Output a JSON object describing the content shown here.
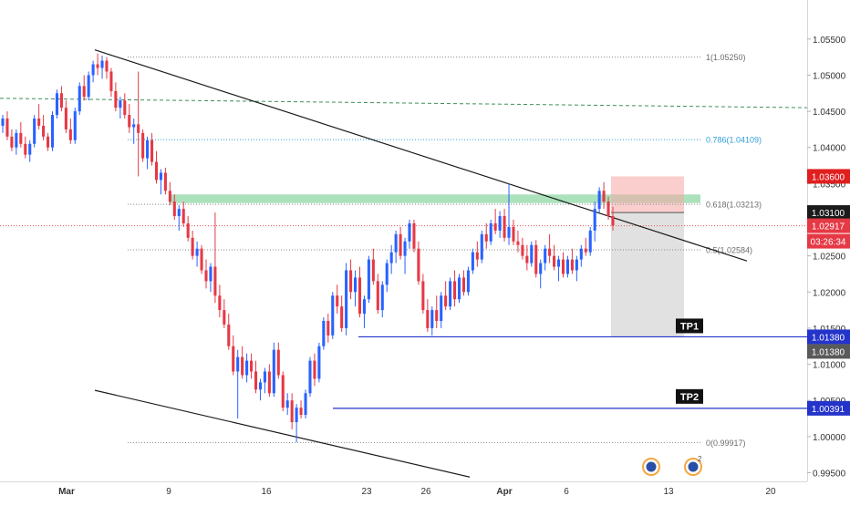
{
  "chart_data": {
    "type": "candlestick",
    "title": "",
    "xlabel": "",
    "ylabel": "",
    "ylim": [
      0.9938,
      1.0604
    ],
    "x_ticks": [
      "Mar",
      "9",
      "16",
      "23",
      "26",
      "Apr",
      "6",
      "13",
      "20"
    ],
    "y_ticks": [
      "1.05500",
      "1.05000",
      "1.04500",
      "1.04000",
      "1.03500",
      "1.03000",
      "1.02500",
      "1.02000",
      "1.01500",
      "1.01000",
      "1.00500",
      "1.00000",
      "0.99500"
    ],
    "price_labels": {
      "stop_loss": "1.03600",
      "entry": "1.03100",
      "current": "1.02917",
      "countdown": "03:26:34",
      "tp1": "1.01380",
      "tp1_repeat": "1.01380",
      "tp2": "1.00391"
    },
    "fibonacci_levels": [
      "1(1.05250)",
      "0.786(1.04109)",
      "0.618(1.03213)",
      "0.5(1.02584)",
      "0(0.99917)"
    ],
    "annotations": [
      "TP1",
      "TP2"
    ],
    "series": [
      {
        "values": [
          [
            1.043,
            1.0445,
            1.042,
            1.044
          ],
          [
            1.044,
            1.045,
            1.041,
            1.0415
          ],
          [
            1.0415,
            1.0425,
            1.0395,
            1.04
          ],
          [
            1.04,
            1.0425,
            1.039,
            1.042
          ],
          [
            1.042,
            1.0435,
            1.04,
            1.0405
          ],
          [
            1.0405,
            1.0415,
            1.0385,
            1.039
          ],
          [
            1.039,
            1.041,
            1.038,
            1.0405
          ],
          [
            1.0405,
            1.0445,
            1.04,
            1.044
          ],
          [
            1.044,
            1.046,
            1.0425,
            1.043
          ],
          [
            1.043,
            1.0445,
            1.041,
            1.0415
          ],
          [
            1.0415,
            1.042,
            1.0395,
            1.04
          ],
          [
            1.04,
            1.045,
            1.0395,
            1.0445
          ],
          [
            1.0445,
            1.048,
            1.044,
            1.0475
          ],
          [
            1.0475,
            1.0485,
            1.045,
            1.0455
          ],
          [
            1.0455,
            1.0465,
            1.042,
            1.0425
          ],
          [
            1.0425,
            1.044,
            1.0405,
            1.041
          ],
          [
            1.041,
            1.0455,
            1.0405,
            1.045
          ],
          [
            1.045,
            1.049,
            1.0445,
            1.0485
          ],
          [
            1.0485,
            1.05,
            1.0465,
            1.047
          ],
          [
            1.047,
            1.0505,
            1.0465,
            1.05
          ],
          [
            1.05,
            1.052,
            1.049,
            1.0515
          ],
          [
            1.0515,
            1.053,
            1.05,
            1.051
          ],
          [
            1.051,
            1.0527,
            1.0495,
            1.052
          ],
          [
            1.052,
            1.0525,
            1.0495,
            1.0505
          ],
          [
            1.0505,
            1.051,
            1.047,
            1.0478
          ],
          [
            1.0478,
            1.049,
            1.045,
            1.0455
          ],
          [
            1.0455,
            1.047,
            1.044,
            1.0465
          ],
          [
            1.0465,
            1.0475,
            1.044,
            1.0445
          ],
          [
            1.0445,
            1.046,
            1.042,
            1.0428
          ],
          [
            1.0428,
            1.044,
            1.0405,
            1.0432
          ],
          [
            1.0432,
            1.0505,
            1.036,
            1.042
          ],
          [
            1.042,
            1.0425,
            1.038,
            1.0385
          ],
          [
            1.0385,
            1.0415,
            1.037,
            1.041
          ],
          [
            1.041,
            1.042,
            1.0375,
            1.038
          ],
          [
            1.038,
            1.0395,
            1.035,
            1.0355
          ],
          [
            1.0355,
            1.037,
            1.0335,
            1.0365
          ],
          [
            1.0365,
            1.0372,
            1.0335,
            1.034
          ],
          [
            1.034,
            1.0352,
            1.032,
            1.0325
          ],
          [
            1.0325,
            1.0335,
            1.03,
            1.0305
          ],
          [
            1.0305,
            1.032,
            1.0285,
            1.0315
          ],
          [
            1.0315,
            1.0325,
            1.029,
            1.0295
          ],
          [
            1.0295,
            1.0305,
            1.027,
            1.0275
          ],
          [
            1.0275,
            1.0285,
            1.0245,
            1.025
          ],
          [
            1.025,
            1.027,
            1.0235,
            1.026
          ],
          [
            1.026,
            1.0265,
            1.0225,
            1.023
          ],
          [
            1.023,
            1.0245,
            1.0205,
            1.0215
          ],
          [
            1.0215,
            1.024,
            1.02,
            1.0235
          ],
          [
            1.0235,
            1.031,
            1.0185,
            1.0195
          ],
          [
            1.0195,
            1.021,
            1.0165,
            1.0175
          ],
          [
            1.0175,
            1.019,
            1.015,
            1.0155
          ],
          [
            1.0155,
            1.017,
            1.012,
            1.0125
          ],
          [
            1.0125,
            1.014,
            1.0085,
            1.009
          ],
          [
            1.009,
            1.012,
            1.0025,
            1.011
          ],
          [
            1.011,
            1.0125,
            1.008,
            1.0085
          ],
          [
            1.0085,
            1.0115,
            1.0075,
            1.0105
          ],
          [
            1.0105,
            1.0115,
            1.008,
            1.009
          ],
          [
            1.009,
            1.0105,
            1.006,
            1.0065
          ],
          [
            1.0065,
            1.008,
            1.005,
            1.0075
          ],
          [
            1.0075,
            1.0095,
            1.006,
            1.009
          ],
          [
            1.009,
            1.01,
            1.0055,
            1.006
          ],
          [
            1.006,
            1.013,
            1.0055,
            1.012
          ],
          [
            1.012,
            1.013,
            1.008,
            1.0085
          ],
          [
            1.0085,
            1.009,
            1.0035,
            1.004
          ],
          [
            1.004,
            1.006,
            1.003,
            1.005
          ],
          [
            1.005,
            1.006,
            1.001,
            1.002
          ],
          [
            1.002,
            1.0045,
            0.9992,
            1.004
          ],
          [
            1.004,
            1.005,
            1.0025,
            1.003
          ],
          [
            1.003,
            1.0065,
            1.0025,
            1.006
          ],
          [
            1.006,
            1.011,
            1.0055,
            1.0105
          ],
          [
            1.0105,
            1.0115,
            1.007,
            1.008
          ],
          [
            1.008,
            1.013,
            1.0075,
            1.0125
          ],
          [
            1.0125,
            1.0165,
            1.012,
            1.016
          ],
          [
            1.016,
            1.017,
            1.013,
            1.014
          ],
          [
            1.014,
            1.02,
            1.0135,
            1.0195
          ],
          [
            1.0195,
            1.021,
            1.017,
            1.018
          ],
          [
            1.018,
            1.0195,
            1.0145,
            1.015
          ],
          [
            1.015,
            1.024,
            1.014,
            1.023
          ],
          [
            1.023,
            1.0245,
            1.019,
            1.02
          ],
          [
            1.02,
            1.023,
            1.018,
            1.022
          ],
          [
            1.022,
            1.0235,
            1.0165,
            1.017
          ],
          [
            1.017,
            1.0195,
            1.015,
            1.019
          ],
          [
            1.019,
            1.025,
            1.0185,
            1.0245
          ],
          [
            1.0245,
            1.026,
            1.021,
            1.0215
          ],
          [
            1.0215,
            1.0225,
            1.017,
            1.0175
          ],
          [
            1.0175,
            1.0215,
            1.0165,
            1.021
          ],
          [
            1.021,
            1.0245,
            1.02,
            1.024
          ],
          [
            1.024,
            1.0265,
            1.0225,
            1.0255
          ],
          [
            1.0255,
            1.0285,
            1.024,
            1.028
          ],
          [
            1.028,
            1.029,
            1.0245,
            1.025
          ],
          [
            1.025,
            1.0275,
            1.0225,
            1.027
          ],
          [
            1.027,
            1.03,
            1.026,
            1.0295
          ],
          [
            1.0295,
            1.03,
            1.0255,
            1.026
          ],
          [
            1.026,
            1.027,
            1.021,
            1.0215
          ],
          [
            1.0215,
            1.0225,
            1.017,
            1.0175
          ],
          [
            1.0175,
            1.019,
            1.0145,
            1.015
          ],
          [
            1.015,
            1.018,
            1.014,
            1.0175
          ],
          [
            1.0175,
            1.0195,
            1.015,
            1.016
          ],
          [
            1.016,
            1.02,
            1.015,
            1.0195
          ],
          [
            1.0195,
            1.0215,
            1.0175,
            1.018
          ],
          [
            1.018,
            1.022,
            1.0175,
            1.0215
          ],
          [
            1.0215,
            1.023,
            1.018,
            1.019
          ],
          [
            1.019,
            1.0225,
            1.0185,
            1.022
          ],
          [
            1.022,
            1.023,
            1.0195,
            1.02
          ],
          [
            1.02,
            1.0235,
            1.0195,
            1.023
          ],
          [
            1.023,
            1.026,
            1.0225,
            1.0255
          ],
          [
            1.0255,
            1.027,
            1.0235,
            1.0245
          ],
          [
            1.0245,
            1.0285,
            1.024,
            1.028
          ],
          [
            1.028,
            1.0295,
            1.026,
            1.027
          ],
          [
            1.027,
            1.03,
            1.0265,
            1.0295
          ],
          [
            1.0295,
            1.0315,
            1.028,
            1.0285
          ],
          [
            1.0285,
            1.0312,
            1.0275,
            1.0305
          ],
          [
            1.0305,
            1.0315,
            1.027,
            1.0275
          ],
          [
            1.0275,
            1.035,
            1.0265,
            1.029
          ],
          [
            1.029,
            1.03,
            1.0265,
            1.027
          ],
          [
            1.027,
            1.0285,
            1.0255,
            1.0265
          ],
          [
            1.0265,
            1.0275,
            1.0245,
            1.025
          ],
          [
            1.025,
            1.0265,
            1.023,
            1.024
          ],
          [
            1.024,
            1.027,
            1.0235,
            1.0265
          ],
          [
            1.0265,
            1.0272,
            1.022,
            1.0225
          ],
          [
            1.0225,
            1.0245,
            1.0205,
            1.024
          ],
          [
            1.024,
            1.0265,
            1.023,
            1.026
          ],
          [
            1.026,
            1.028,
            1.024,
            1.025
          ],
          [
            1.025,
            1.0265,
            1.023,
            1.0235
          ],
          [
            1.0235,
            1.025,
            1.0215,
            1.0245
          ],
          [
            1.0245,
            1.0255,
            1.022,
            1.0225
          ],
          [
            1.0225,
            1.025,
            1.022,
            1.0245
          ],
          [
            1.0245,
            1.026,
            1.0225,
            1.023
          ],
          [
            1.023,
            1.025,
            1.0215,
            1.0245
          ],
          [
            1.0245,
            1.0265,
            1.0235,
            1.026
          ],
          [
            1.026,
            1.0275,
            1.025,
            1.0255
          ],
          [
            1.0255,
            1.029,
            1.025,
            1.0285
          ],
          [
            1.0285,
            1.0325,
            1.027,
            1.0315
          ],
          [
            1.0315,
            1.0345,
            1.031,
            1.034
          ],
          [
            1.034,
            1.0352,
            1.0315,
            1.0325
          ],
          [
            1.0325,
            1.0332,
            1.03,
            1.0305
          ],
          [
            1.0305,
            1.0318,
            1.0285,
            1.0292
          ]
        ]
      }
    ]
  }
}
